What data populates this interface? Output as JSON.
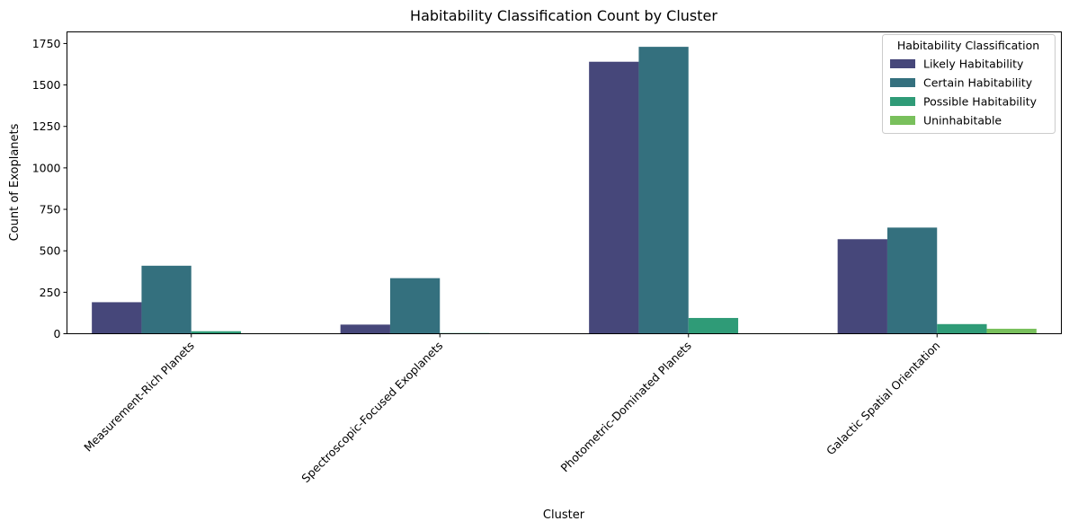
{
  "chart_data": {
    "type": "bar",
    "title": "Habitability Classification Count by Cluster",
    "xlabel": "Cluster",
    "ylabel": "Count of Exoplanets",
    "categories": [
      "Measurement-Rich Planets",
      "Spectroscopic-Focused Exoplanets",
      "Photometric-Dominated Planets",
      "Galactic Spatial Orientation"
    ],
    "yticks": [
      0,
      250,
      500,
      750,
      1000,
      1250,
      1500,
      1750
    ],
    "ylim": [
      0,
      1820
    ],
    "grid": false,
    "legend": {
      "title": "Habitability Classification",
      "placement": "top-right"
    },
    "series": [
      {
        "name": "Likely Habitability",
        "color": "#46477a",
        "values": [
          190,
          55,
          1640,
          570
        ]
      },
      {
        "name": "Certain Habitability",
        "color": "#34707e",
        "values": [
          410,
          335,
          1730,
          640
        ]
      },
      {
        "name": "Possible Habitability",
        "color": "#2f9b77",
        "values": [
          15,
          4,
          95,
          58
        ]
      },
      {
        "name": "Uninhabitable",
        "color": "#79c05c",
        "values": [
          3,
          2,
          3,
          30
        ]
      }
    ]
  }
}
